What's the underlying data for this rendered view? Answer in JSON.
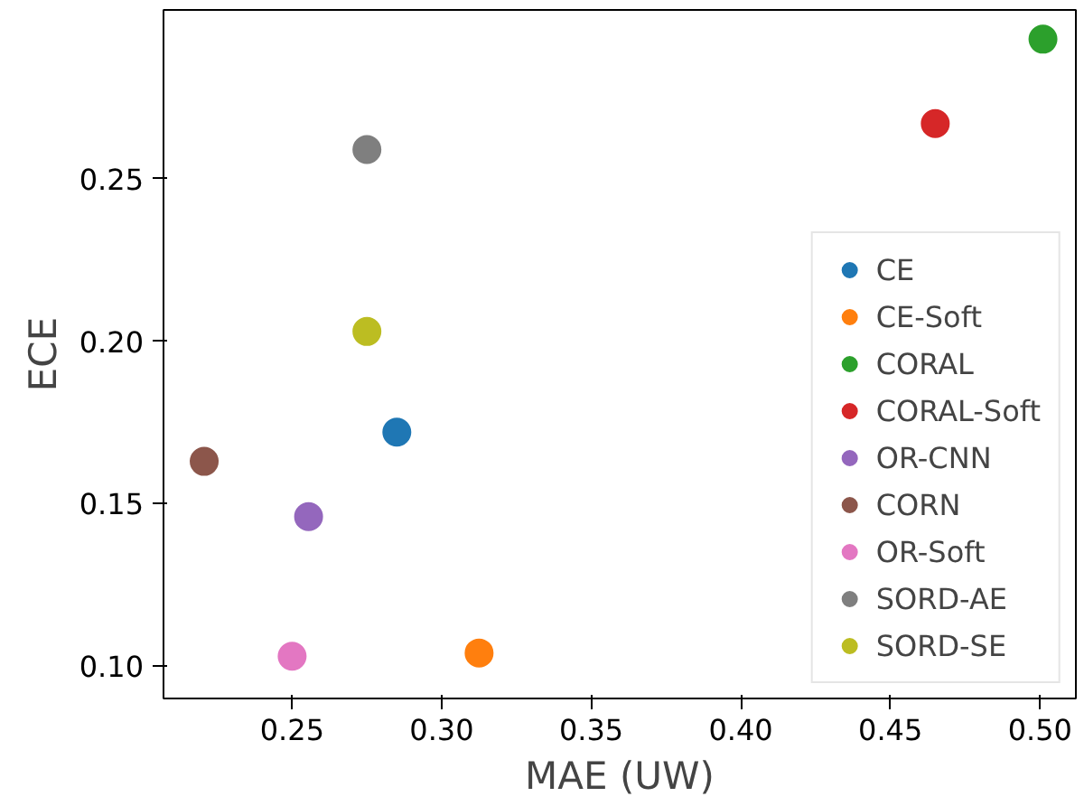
{
  "chart_data": {
    "type": "scatter",
    "xlabel": "MAE (UW)",
    "ylabel": "ECE",
    "xlim": [
      0.207,
      0.512
    ],
    "ylim": [
      0.09,
      0.302
    ],
    "xticks": [
      0.25,
      {
        "value": 0.3,
        "label": "0.30"
      },
      0.35,
      {
        "value": 0.4,
        "label": "0.40"
      },
      0.45,
      {
        "value": 0.5,
        "label": "0.50"
      }
    ],
    "yticks": [
      {
        "value": 0.1,
        "label": "0.10"
      },
      0.15,
      {
        "value": 0.2,
        "label": "0.20"
      },
      0.25
    ],
    "marker": "circle",
    "legend": "bottom right",
    "grid": false,
    "series": [
      {
        "name": "CE",
        "color": "#1f77b4",
        "x": [
          0.285
        ],
        "values": [
          0.172
        ]
      },
      {
        "name": "CE-Soft",
        "color": "#ff7f0e",
        "x": [
          0.3125
        ],
        "values": [
          0.104
        ]
      },
      {
        "name": "CORAL",
        "color": "#2ca02c",
        "x": [
          0.501
        ],
        "values": [
          0.293
        ]
      },
      {
        "name": "CORAL-Soft",
        "color": "#d62728",
        "x": [
          0.465
        ],
        "values": [
          0.267
        ]
      },
      {
        "name": "OR-CNN",
        "color": "#9467bd",
        "x": [
          0.2555
        ],
        "values": [
          0.146
        ]
      },
      {
        "name": "CORN",
        "color": "#8c564b",
        "x": [
          0.2206
        ],
        "values": [
          0.163
        ]
      },
      {
        "name": "OR-Soft",
        "color": "#e377c2",
        "x": [
          0.25
        ],
        "values": [
          0.103
        ]
      },
      {
        "name": "SORD-AE",
        "color": "#7f7f7f",
        "x": [
          0.275
        ],
        "values": [
          0.259
        ]
      },
      {
        "name": "SORD-SE",
        "color": "#bcbd22",
        "x": [
          0.275
        ],
        "values": [
          0.203
        ]
      }
    ]
  }
}
